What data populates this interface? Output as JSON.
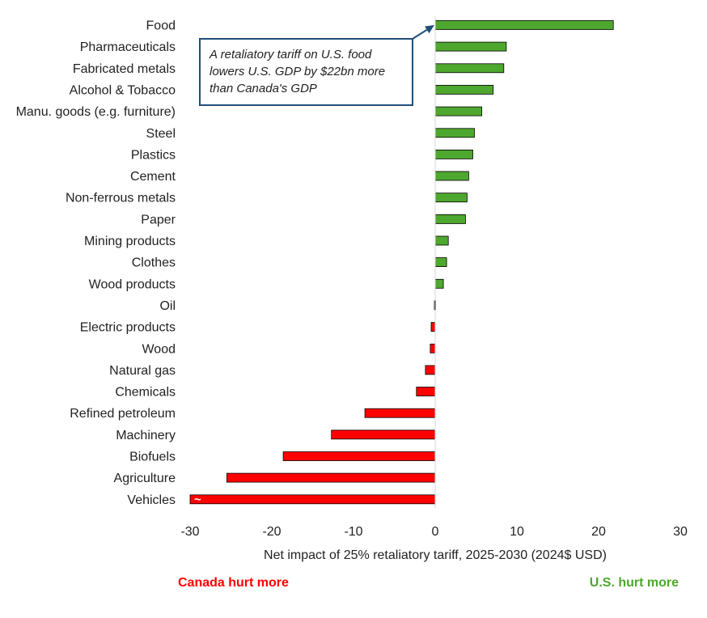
{
  "chart_data": {
    "type": "bar",
    "orientation": "horizontal",
    "categories": [
      "Food",
      "Pharmaceuticals",
      "Fabricated metals",
      "Alcohol & Tobacco",
      "Manu. goods (e.g. furniture)",
      "Steel",
      "Plastics",
      "Cement",
      "Non-ferrous metals",
      "Paper",
      "Mining products",
      "Clothes",
      "Wood products",
      "Oil",
      "Electric products",
      "Wood",
      "Natural gas",
      "Chemicals",
      "Refined petroleum",
      "Machinery",
      "Biofuels",
      "Agriculture",
      "Vehicles"
    ],
    "values": [
      21.8,
      8.7,
      8.4,
      7.1,
      5.7,
      4.8,
      4.6,
      4.1,
      3.9,
      3.7,
      1.6,
      1.4,
      1.0,
      -0.1,
      -0.5,
      -0.6,
      -1.2,
      -2.3,
      -8.6,
      -12.7,
      -18.6,
      -25.5,
      -30.0
    ],
    "xlabel": "Net impact of 25% retaliatory tariff, 2025-2030 (2024$ USD)",
    "xlim": [
      -30,
      30
    ],
    "xticks": [
      -30,
      -20,
      -10,
      0,
      10,
      20,
      30
    ],
    "positive_color": "#4ea72e",
    "negative_color": "#ff0000",
    "grid": false,
    "truncated_bar_marker": "~",
    "annotation": {
      "lines": [
        "A retaliatory tariff on U.S. food",
        "lowers U.S. GDP by $22bn more",
        "than Canada's GDP"
      ],
      "target": "Food",
      "box_color": "#1f4e79"
    },
    "side_labels": {
      "negative": "Canada hurt more",
      "positive": "U.S. hurt more"
    }
  }
}
